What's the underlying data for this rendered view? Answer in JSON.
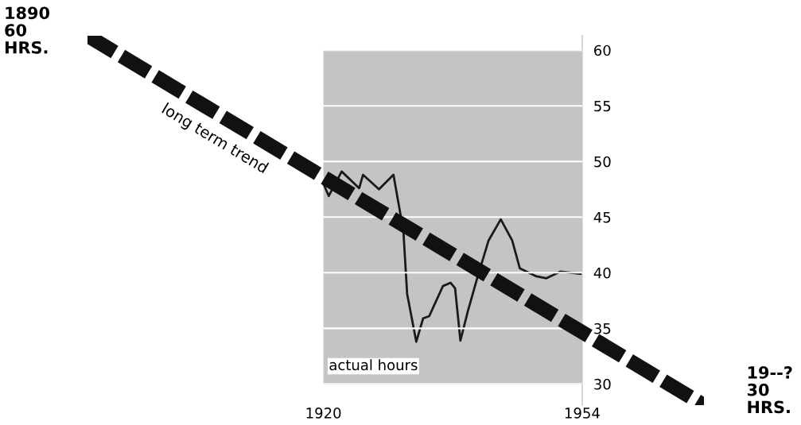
{
  "chart_data": {
    "type": "line",
    "annotations": [
      "1890\n60\nHRS.",
      "19--?\n30\nHRS."
    ],
    "xlim": [
      1889,
      1970
    ],
    "ylim": [
      28.1,
      61.3
    ],
    "xticks": [
      1920,
      1954
    ],
    "yticks": [
      30,
      35,
      40,
      45,
      50,
      55,
      60
    ],
    "grid": "y",
    "legend": false,
    "marker": "none",
    "series": [
      {
        "name": "actual hours",
        "color": "#1a1a1a",
        "line_style": "solid",
        "x": [
          1920,
          1920.7,
          1922.4,
          1924.7,
          1925.2,
          1927.3,
          1929.2,
          1930.5,
          1931,
          1932.2,
          1933.1,
          1933.9,
          1935.7,
          1936.7,
          1937.3,
          1938,
          1939,
          1940.2,
          1941.7,
          1943.3,
          1944.8,
          1945.8,
          1947.9,
          1949.3,
          1951.1,
          1953.7,
          1954
        ],
        "values": [
          48,
          46.9,
          49.1,
          47.6,
          48.8,
          47.5,
          48.8,
          43.8,
          38.1,
          33.8,
          35.9,
          36.1,
          38.8,
          39.1,
          38.6,
          33.9,
          36.6,
          39.5,
          42.9,
          44.8,
          42.9,
          40.4,
          39.7,
          39.5,
          40.1,
          39.9,
          39.9
        ]
      },
      {
        "name": "long term trend",
        "color": "#111111",
        "line_style": "dashed",
        "x": [
          1889,
          1970
        ],
        "values": [
          61.3,
          28.1
        ]
      }
    ]
  }
}
